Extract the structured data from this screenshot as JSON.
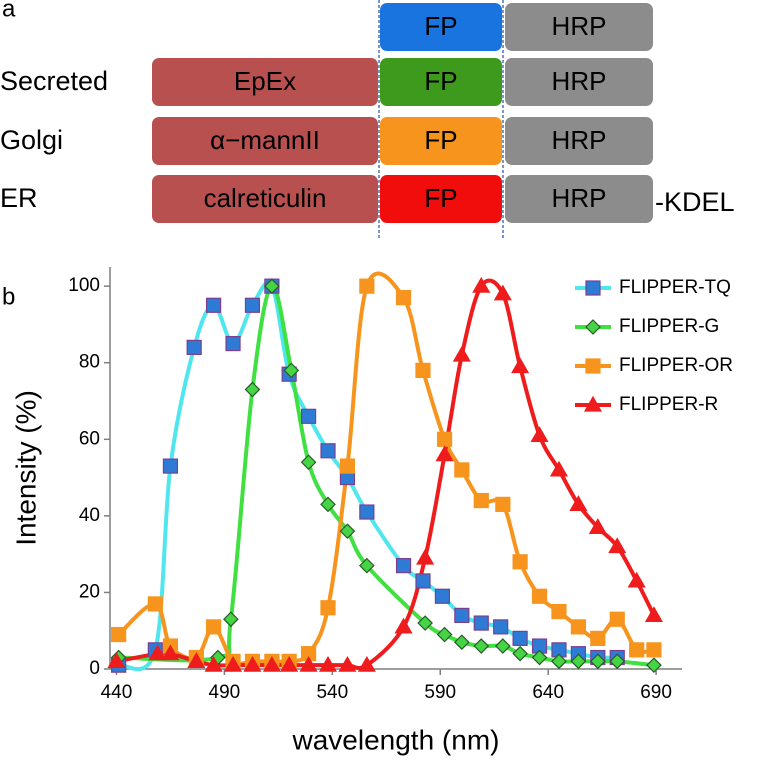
{
  "diagram": {
    "panel_labels": [
      "a",
      "b"
    ],
    "rows": [
      {
        "fp": "FP",
        "fp_color": "#1a74e0",
        "hrp": "HRP"
      },
      {
        "label": "Secreted",
        "signal": "EpEx",
        "fp": "FP",
        "fp_color": "#3e9a1c",
        "hrp": "HRP"
      },
      {
        "label": "Golgi",
        "signal": "α−mannII",
        "fp": "FP",
        "fp_color": "#f7941d",
        "hrp": "HRP"
      },
      {
        "label": "ER",
        "signal": "calreticulin",
        "fp": "FP",
        "fp_color": "#f20d0d",
        "hrp": "HRP",
        "suffix": "-KDEL"
      }
    ]
  },
  "chart_data": {
    "type": "line",
    "x_label": "wavelength (nm)",
    "y_label": "Intensity (%)",
    "xlim": [
      437,
      702
    ],
    "ylim": [
      0,
      105
    ],
    "xticks": [
      440,
      490,
      540,
      590,
      640,
      690
    ],
    "yticks": [
      0,
      20,
      40,
      60,
      80,
      100
    ],
    "grid": false,
    "legend": "upper right",
    "series": [
      {
        "name": "FLIPPER-TQ",
        "color": "#4fe6ee",
        "marker": "square",
        "marker_color": "#2e7bd6",
        "marker_edge": "#7b3f8f",
        "x": [
          441,
          458,
          465,
          476,
          485,
          494,
          503,
          512,
          520,
          529,
          538,
          547,
          556,
          573,
          582,
          591,
          600,
          609,
          618,
          627,
          636,
          645,
          654,
          663,
          672
        ],
        "values": [
          1,
          5,
          53,
          84,
          95,
          85,
          95,
          100,
          77,
          66,
          57,
          50,
          41,
          27,
          23,
          19,
          14,
          12,
          11,
          8,
          6,
          5,
          4,
          3,
          3
        ]
      },
      {
        "name": "FLIPPER-G",
        "color": "#3fe03f",
        "marker": "diamond",
        "marker_color": "#44d444",
        "marker_edge": "#2a5a2a",
        "x": [
          441,
          487,
          493,
          503,
          512,
          521,
          529,
          538,
          547,
          556,
          583,
          592,
          600,
          609,
          619,
          627,
          636,
          645,
          654,
          663,
          672,
          689
        ],
        "values": [
          3,
          3,
          13,
          73,
          100,
          78,
          54,
          43,
          36,
          27,
          12,
          9,
          7,
          6,
          6,
          4,
          3,
          2,
          2,
          2,
          2,
          1
        ]
      },
      {
        "name": "FLIPPER-OR",
        "color": "#f7941d",
        "marker": "square",
        "marker_color": "#f7941d",
        "marker_edge": "#f7941d",
        "x": [
          441,
          458,
          465,
          477,
          485,
          494,
          503,
          512,
          520,
          529,
          538,
          547,
          556,
          573,
          582,
          592,
          600,
          609,
          619,
          627,
          636,
          645,
          654,
          663,
          672,
          681,
          689
        ],
        "values": [
          9,
          17,
          6,
          3,
          11,
          2,
          2,
          2,
          2,
          4,
          16,
          53,
          100,
          97,
          78,
          60,
          52,
          44,
          43,
          28,
          19,
          15,
          11,
          8,
          13,
          5,
          5
        ]
      },
      {
        "name": "FLIPPER-R",
        "color": "#ee1c1c",
        "marker": "triangle",
        "marker_color": "#ee1c1c",
        "marker_edge": "#ee1c1c",
        "x": [
          440,
          459,
          465,
          477,
          485,
          494,
          503,
          512,
          520,
          529,
          538,
          547,
          556,
          573,
          583,
          592,
          600,
          609,
          619,
          627,
          636,
          645,
          654,
          663,
          672,
          681,
          689
        ],
        "values": [
          2,
          4,
          4,
          2,
          1,
          1,
          1,
          1,
          1,
          1,
          1,
          1,
          1,
          11,
          29,
          56,
          82,
          100,
          98,
          79,
          61,
          52,
          43,
          37,
          32,
          23,
          14
        ]
      }
    ]
  }
}
